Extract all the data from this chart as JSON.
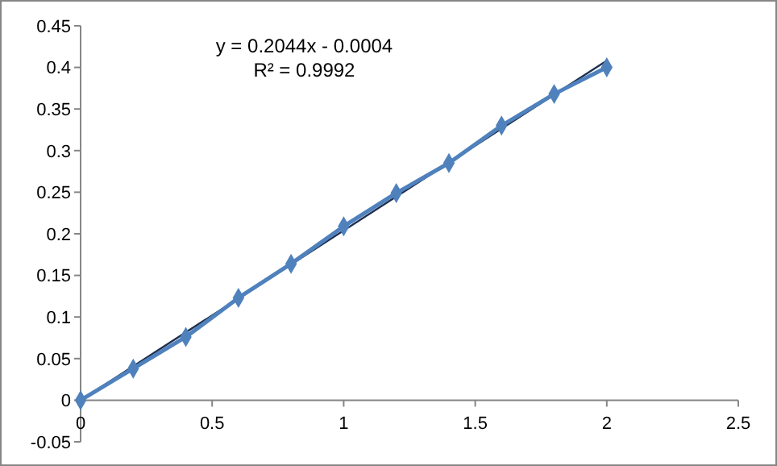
{
  "chart_data": {
    "type": "line",
    "x": [
      0,
      0.2,
      0.4,
      0.6,
      0.8,
      1,
      1.2,
      1.4,
      1.6,
      1.8,
      2
    ],
    "series": [
      {
        "color": "#4f81bd",
        "marker": "diamond",
        "values": [
          0,
          0.038,
          0.076,
          0.123,
          0.164,
          0.209,
          0.249,
          0.285,
          0.33,
          0.368,
          0.4
        ]
      },
      {
        "type": "line",
        "color": "#1f2f4f",
        "marker": "none",
        "x": [
          0,
          2
        ],
        "values": [
          0,
          0.408
        ]
      }
    ],
    "xlim": [
      0,
      2.5
    ],
    "xticks": [
      0,
      0.5,
      1,
      1.5,
      2,
      2.5
    ],
    "ylim": [
      -0.05,
      0.45
    ],
    "yticks": [
      -0.05,
      0,
      0.05,
      0.1,
      0.15,
      0.2,
      0.25,
      0.3,
      0.35,
      0.4,
      0.45
    ],
    "annotations": [
      "y = 0.2044x - 0.0004",
      "R² = 0.9992"
    ],
    "grid": false
  }
}
